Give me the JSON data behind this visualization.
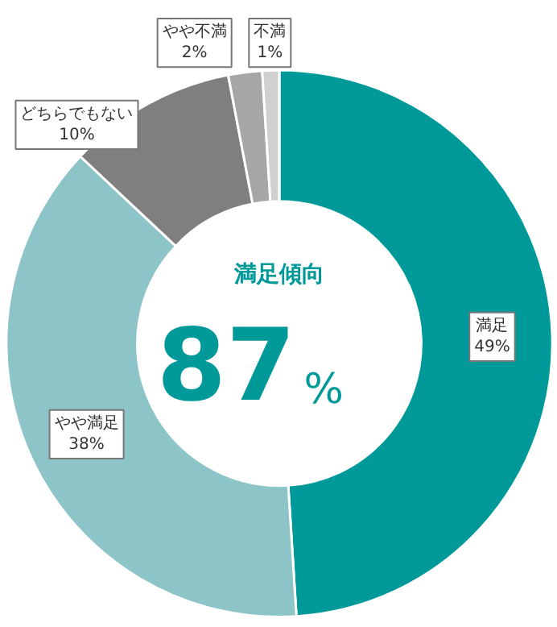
{
  "chart_data": {
    "type": "donut",
    "categories": [
      "満足",
      "やや満足",
      "どちらでもない",
      "やや不満",
      "不満"
    ],
    "values": [
      49,
      38,
      10,
      2,
      1
    ],
    "colors": [
      "#00999a",
      "#8cc4c7",
      "#7f7f7f",
      "#a6a6a6",
      "#d0d0d0"
    ],
    "value_labels": [
      "49%",
      "38%",
      "10%",
      "2%",
      "1%"
    ],
    "annotations": [
      "満足傾向",
      "87%"
    ]
  }
}
